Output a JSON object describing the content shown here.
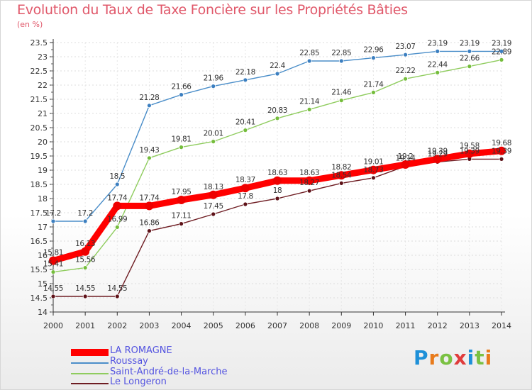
{
  "title": "Evolution du Taux de Taxe Foncière sur les Propriétés Bâties",
  "unit_label": "(en %)",
  "logo": {
    "letters": [
      "P",
      "r",
      "o",
      "x",
      "i",
      "t",
      "i"
    ],
    "colors": [
      "#1e90d8",
      "#e87b1c",
      "#7ac142",
      "#e03c3c",
      "#1e90d8",
      "#7ac142",
      "#e87b1c"
    ]
  },
  "chart_data": {
    "type": "line",
    "title": "Evolution du Taux de Taxe Foncière sur les Propriétés Bâties",
    "xlabel": "",
    "ylabel": "(en %)",
    "ylim": [
      14,
      23.5
    ],
    "y_ticks": [
      "14",
      "14.5",
      "15",
      "15.5",
      "16",
      "16.5",
      "17",
      "17.5",
      "18",
      "18.5",
      "19",
      "19.5",
      "20",
      "20.5",
      "21",
      "21.5",
      "22",
      "22.5",
      "23",
      "23.5"
    ],
    "categories": [
      "2000",
      "2001",
      "2002",
      "2003",
      "2004",
      "2005",
      "2006",
      "2007",
      "2008",
      "2009",
      "2010",
      "2011",
      "2012",
      "2013",
      "2014"
    ],
    "series": [
      {
        "name": "Roussay",
        "color": "#4b8ec9",
        "marker": "#3c7fc0",
        "values": [
          17.2,
          17.2,
          18.5,
          21.28,
          21.66,
          21.96,
          22.18,
          22.4,
          22.85,
          22.85,
          22.96,
          23.07,
          23.19,
          23.19,
          23.19
        ],
        "labels": [
          "17.2",
          "17.2",
          "18.5",
          "21.28",
          "21.66",
          "21.96",
          "22.18",
          "22.4",
          "22.85",
          "22.85",
          "22.96",
          "23.07",
          "23.19",
          "23.19",
          "23.19"
        ]
      },
      {
        "name": "Saint-André-de-la-Marche",
        "color": "#8fcc5e",
        "marker": "#75bd3c",
        "values": [
          15.41,
          15.56,
          16.99,
          19.43,
          19.81,
          20.01,
          20.41,
          20.83,
          21.14,
          21.46,
          21.74,
          22.22,
          22.44,
          22.66,
          22.89
        ],
        "labels": [
          "15.41",
          "15.56",
          "16.99",
          "19.43",
          "19.81",
          "20.01",
          "20.41",
          "20.83",
          "21.14",
          "21.46",
          "21.74",
          "22.22",
          "22.44",
          "22.66",
          "22.89"
        ]
      },
      {
        "name": "Le Longeron",
        "color": "#6e1c22",
        "marker": "#5e1218",
        "values": [
          14.55,
          14.55,
          14.55,
          16.86,
          17.11,
          17.45,
          17.8,
          18.0,
          18.27,
          18.54,
          18.73,
          19.14,
          19.29,
          19.39,
          19.39
        ],
        "labels": [
          "14.55",
          "14.55",
          "14.55",
          "16.86",
          "17.11",
          "17.45",
          "17.8",
          "18",
          "18.27",
          "18.54",
          "18.73",
          "19.14",
          "19.29",
          "19.39",
          "19.39"
        ]
      },
      {
        "name": "LA ROMAGNE",
        "color": "#ff0000",
        "marker": "#ee0000",
        "values": [
          15.81,
          16.13,
          17.74,
          17.74,
          17.95,
          18.13,
          18.37,
          18.63,
          18.63,
          18.82,
          19.01,
          19.2,
          19.39,
          19.58,
          19.68
        ],
        "labels": [
          "15.81",
          "16.13",
          "17.74",
          "17.74",
          "17.95",
          "18.13",
          "18.37",
          "18.63",
          "18.63",
          "18.82",
          "19.01",
          "19.2",
          "19.39",
          "19.58",
          "19.68"
        ]
      }
    ],
    "legend": [
      {
        "name": "LA ROMAGNE",
        "color": "#ff0000"
      },
      {
        "name": "Roussay",
        "color": "#4b8ec9"
      },
      {
        "name": "Saint-André-de-la-Marche",
        "color": "#8fcc5e"
      },
      {
        "name": "Le Longeron",
        "color": "#6e1c22"
      }
    ]
  }
}
